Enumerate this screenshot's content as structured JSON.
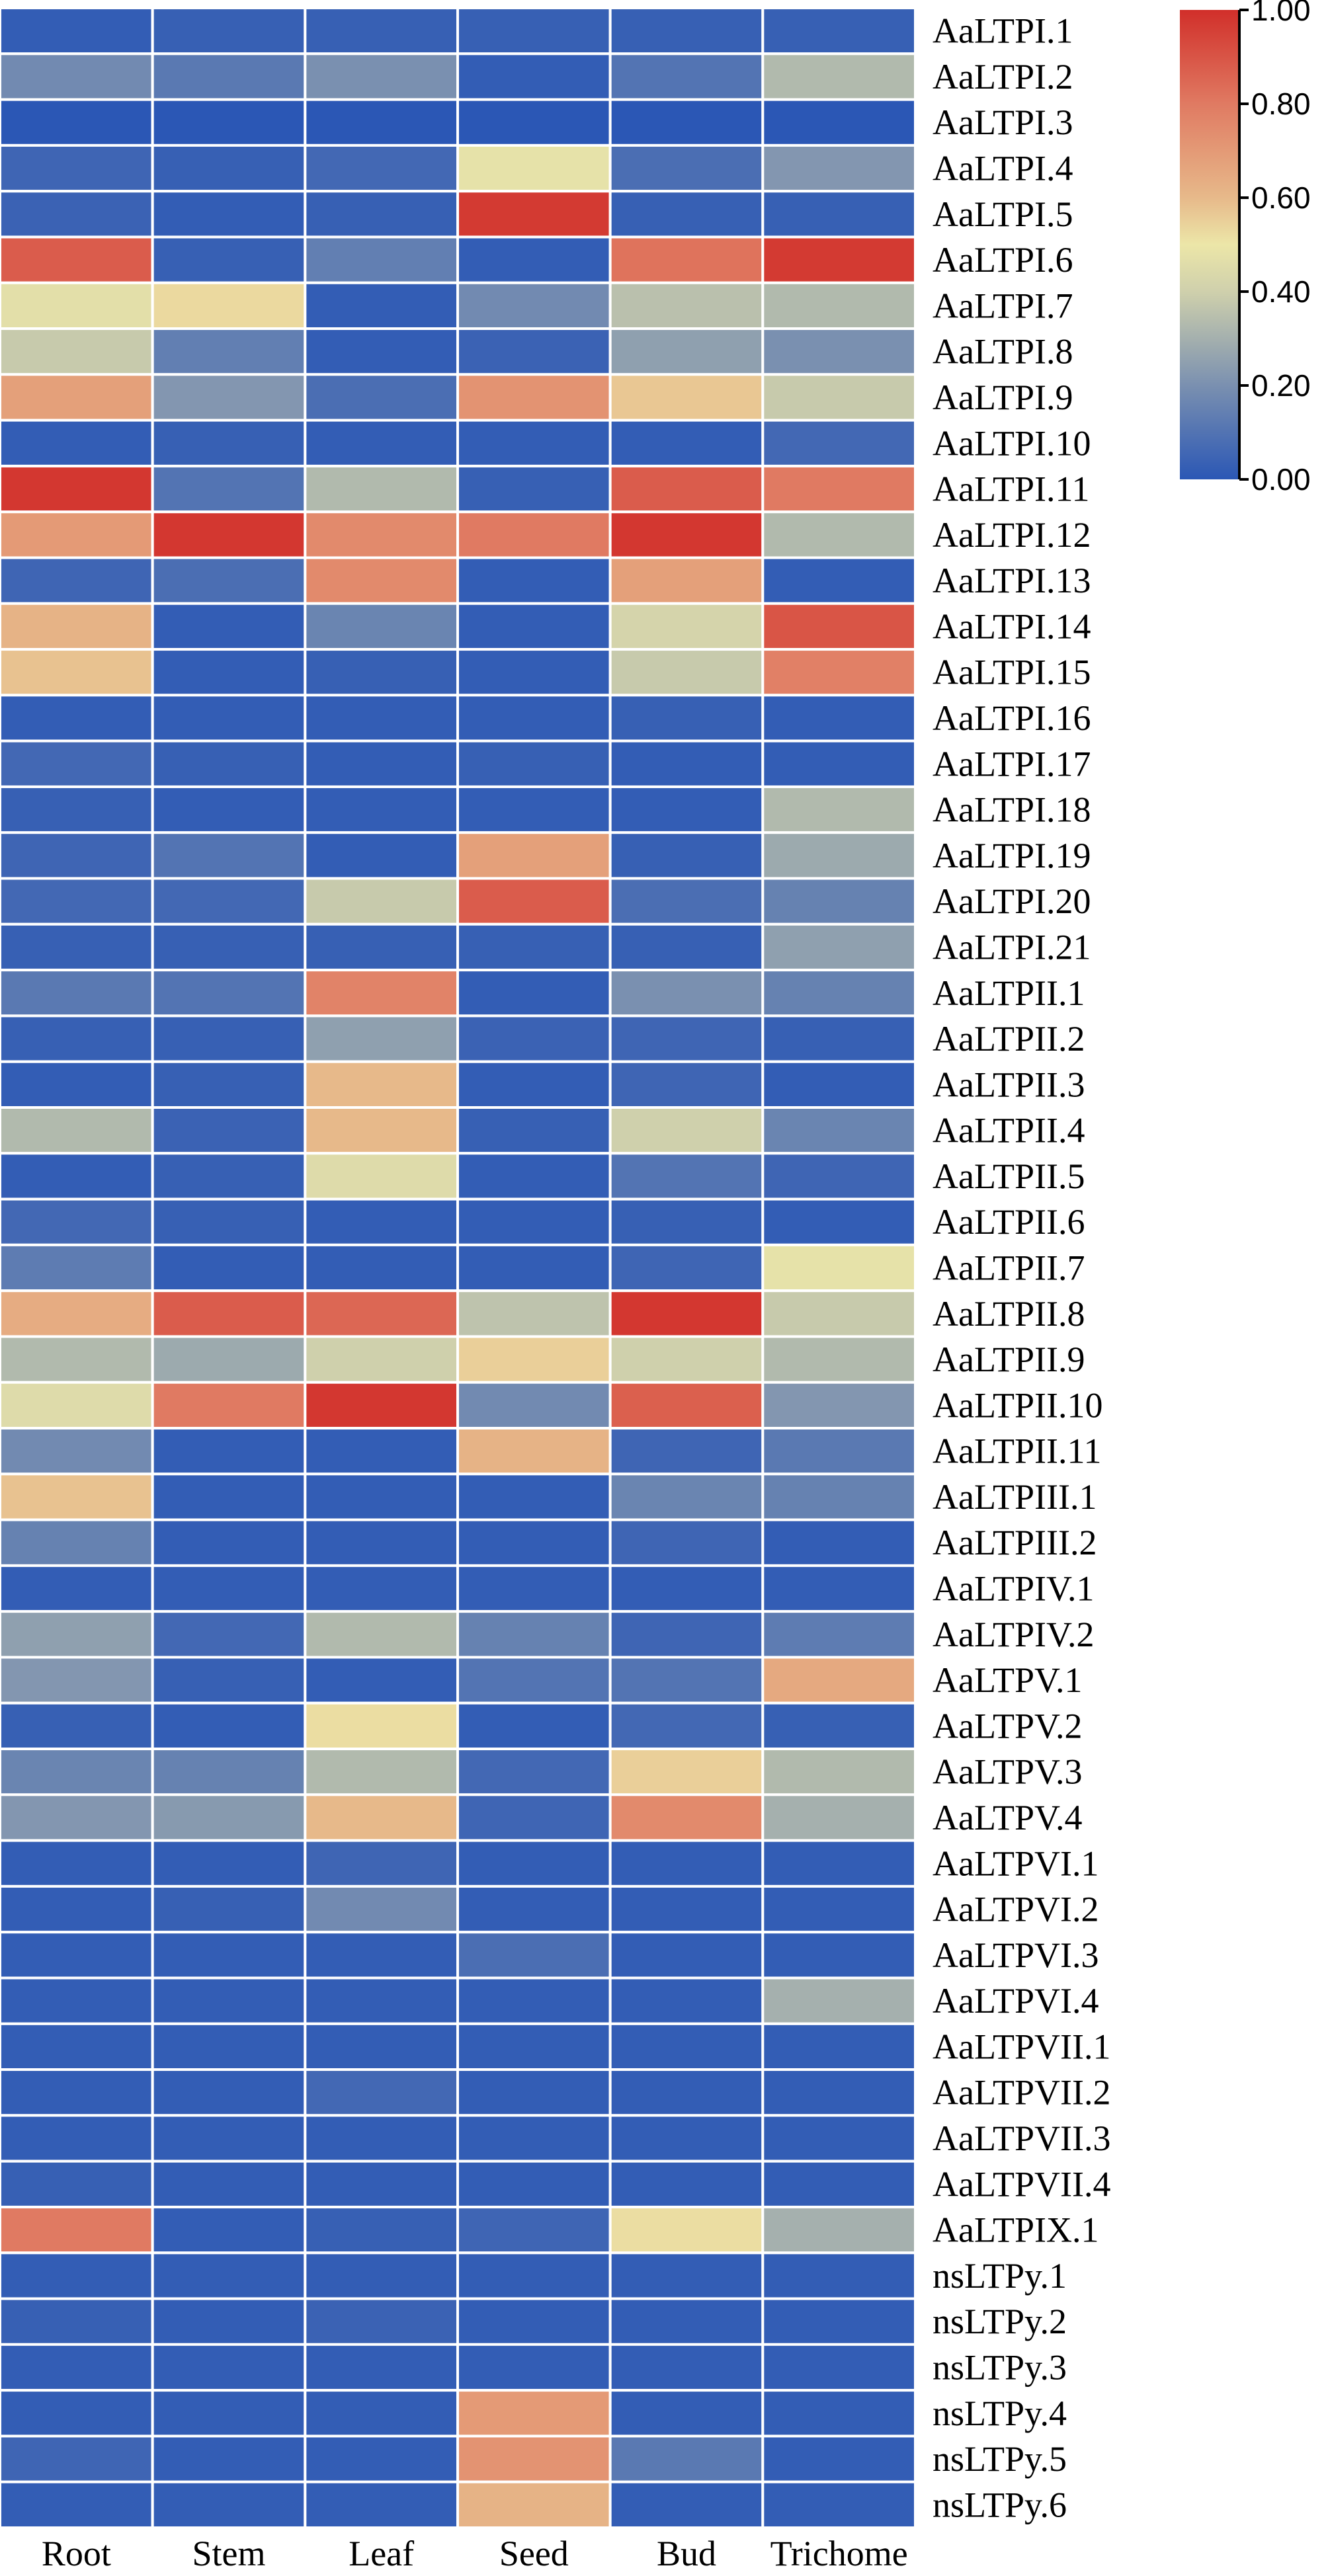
{
  "chart_data": {
    "type": "heatmap",
    "title": "",
    "columns": [
      "Root",
      "Stem",
      "Leaf",
      "Seed",
      "Bud",
      "Trichome"
    ],
    "rows": [
      "AaLTPI.1",
      "AaLTPI.2",
      "AaLTPI.3",
      "AaLTPI.4",
      "AaLTPI.5",
      "AaLTPI.6",
      "AaLTPI.7",
      "AaLTPI.8",
      "AaLTPI.9",
      "AaLTPI.10",
      "AaLTPI.11",
      "AaLTPI.12",
      "AaLTPI.13",
      "AaLTPI.14",
      "AaLTPI.15",
      "AaLTPI.16",
      "AaLTPI.17",
      "AaLTPI.18",
      "AaLTPI.19",
      "AaLTPI.20",
      "AaLTPI.21",
      "AaLTPII.1",
      "AaLTPII.2",
      "AaLTPII.3",
      "AaLTPII.4",
      "AaLTPII.5",
      "AaLTPII.6",
      "AaLTPII.7",
      "AaLTPII.8",
      "AaLTPII.9",
      "AaLTPII.10",
      "AaLTPII.11",
      "AaLTPIII.1",
      "AaLTPIII.2",
      "AaLTPIV.1",
      "AaLTPIV.2",
      "AaLTPV.1",
      "AaLTPV.2",
      "AaLTPV.3",
      "AaLTPV.4",
      "AaLTPVI.1",
      "AaLTPVI.2",
      "AaLTPVI.3",
      "AaLTPVI.4",
      "AaLTPVII.1",
      "AaLTPVII.2",
      "AaLTPVII.3",
      "AaLTPVII.4",
      "AaLTPIX.1",
      "nsLTPy.1",
      "nsLTPy.2",
      "nsLTPy.3",
      "nsLTPy.4",
      "nsLTPy.5",
      "nsLTPy.6"
    ],
    "values": [
      [
        0.02,
        0.03,
        0.03,
        0.03,
        0.03,
        0.03
      ],
      [
        0.18,
        0.12,
        0.2,
        0.02,
        0.1,
        0.33
      ],
      [
        0.0,
        0.0,
        0.0,
        0.0,
        0.0,
        0.0
      ],
      [
        0.05,
        0.03,
        0.06,
        0.48,
        0.08,
        0.22
      ],
      [
        0.04,
        0.02,
        0.03,
        0.97,
        0.03,
        0.03
      ],
      [
        0.88,
        0.03,
        0.14,
        0.02,
        0.82,
        0.97
      ],
      [
        0.47,
        0.53,
        0.02,
        0.18,
        0.35,
        0.33
      ],
      [
        0.38,
        0.14,
        0.02,
        0.04,
        0.25,
        0.2
      ],
      [
        0.68,
        0.22,
        0.08,
        0.72,
        0.57,
        0.38
      ],
      [
        0.02,
        0.03,
        0.02,
        0.02,
        0.02,
        0.06
      ],
      [
        0.98,
        0.1,
        0.33,
        0.03,
        0.88,
        0.8
      ],
      [
        0.7,
        0.98,
        0.75,
        0.8,
        0.98,
        0.33
      ],
      [
        0.05,
        0.08,
        0.75,
        0.02,
        0.68,
        0.02
      ],
      [
        0.62,
        0.02,
        0.16,
        0.02,
        0.42,
        0.9
      ],
      [
        0.58,
        0.02,
        0.03,
        0.02,
        0.38,
        0.78
      ],
      [
        0.02,
        0.02,
        0.02,
        0.02,
        0.03,
        0.02
      ],
      [
        0.06,
        0.03,
        0.02,
        0.03,
        0.02,
        0.02
      ],
      [
        0.03,
        0.02,
        0.02,
        0.02,
        0.02,
        0.33
      ],
      [
        0.05,
        0.1,
        0.02,
        0.68,
        0.03,
        0.28
      ],
      [
        0.06,
        0.06,
        0.38,
        0.88,
        0.08,
        0.15
      ],
      [
        0.03,
        0.03,
        0.03,
        0.03,
        0.03,
        0.25
      ],
      [
        0.12,
        0.1,
        0.77,
        0.02,
        0.2,
        0.15
      ],
      [
        0.03,
        0.03,
        0.25,
        0.04,
        0.05,
        0.03
      ],
      [
        0.02,
        0.03,
        0.6,
        0.02,
        0.05,
        0.02
      ],
      [
        0.33,
        0.04,
        0.6,
        0.03,
        0.4,
        0.16
      ],
      [
        0.02,
        0.03,
        0.45,
        0.02,
        0.1,
        0.05
      ],
      [
        0.06,
        0.03,
        0.02,
        0.02,
        0.03,
        0.02
      ],
      [
        0.13,
        0.02,
        0.02,
        0.02,
        0.05,
        0.48
      ],
      [
        0.64,
        0.88,
        0.85,
        0.36,
        0.98,
        0.38
      ],
      [
        0.33,
        0.28,
        0.4,
        0.55,
        0.4,
        0.33
      ],
      [
        0.45,
        0.8,
        0.98,
        0.18,
        0.87,
        0.22
      ],
      [
        0.18,
        0.02,
        0.02,
        0.62,
        0.05,
        0.12
      ],
      [
        0.58,
        0.02,
        0.02,
        0.02,
        0.16,
        0.15
      ],
      [
        0.15,
        0.02,
        0.02,
        0.02,
        0.05,
        0.02
      ],
      [
        0.02,
        0.02,
        0.02,
        0.02,
        0.02,
        0.02
      ],
      [
        0.25,
        0.06,
        0.33,
        0.15,
        0.05,
        0.13
      ],
      [
        0.22,
        0.03,
        0.02,
        0.1,
        0.1,
        0.65
      ],
      [
        0.03,
        0.02,
        0.52,
        0.02,
        0.06,
        0.03
      ],
      [
        0.16,
        0.15,
        0.33,
        0.06,
        0.55,
        0.33
      ],
      [
        0.22,
        0.23,
        0.6,
        0.05,
        0.75,
        0.3
      ],
      [
        0.02,
        0.02,
        0.05,
        0.02,
        0.02,
        0.02
      ],
      [
        0.02,
        0.03,
        0.18,
        0.02,
        0.02,
        0.02
      ],
      [
        0.02,
        0.02,
        0.02,
        0.08,
        0.02,
        0.02
      ],
      [
        0.02,
        0.02,
        0.02,
        0.02,
        0.02,
        0.3
      ],
      [
        0.02,
        0.02,
        0.02,
        0.02,
        0.02,
        0.02
      ],
      [
        0.02,
        0.02,
        0.06,
        0.02,
        0.02,
        0.02
      ],
      [
        0.02,
        0.02,
        0.02,
        0.02,
        0.02,
        0.02
      ],
      [
        0.03,
        0.02,
        0.02,
        0.02,
        0.02,
        0.02
      ],
      [
        0.8,
        0.02,
        0.03,
        0.05,
        0.52,
        0.3
      ],
      [
        0.02,
        0.02,
        0.02,
        0.02,
        0.02,
        0.02
      ],
      [
        0.03,
        0.02,
        0.04,
        0.02,
        0.02,
        0.02
      ],
      [
        0.02,
        0.02,
        0.02,
        0.02,
        0.02,
        0.02
      ],
      [
        0.02,
        0.02,
        0.02,
        0.7,
        0.02,
        0.02
      ],
      [
        0.05,
        0.02,
        0.02,
        0.72,
        0.12,
        0.02
      ],
      [
        0.02,
        0.02,
        0.02,
        0.62,
        0.02,
        0.02
      ]
    ],
    "colorbar": {
      "range": [
        0,
        1
      ],
      "ticks": [
        "0.00",
        "0.20",
        "0.40",
        "0.60",
        "0.80",
        "1.00"
      ],
      "colors": [
        "#2b57b5",
        "#7a90b0",
        "#cfd0ac",
        "#ece6a8",
        "#e7b98a",
        "#e07a62",
        "#d12f2a"
      ],
      "stops": [
        0,
        0.2,
        0.4,
        0.5,
        0.6,
        0.8,
        1.0
      ]
    },
    "legend_position": "top-right",
    "cell_border_color": "#ffffff"
  }
}
